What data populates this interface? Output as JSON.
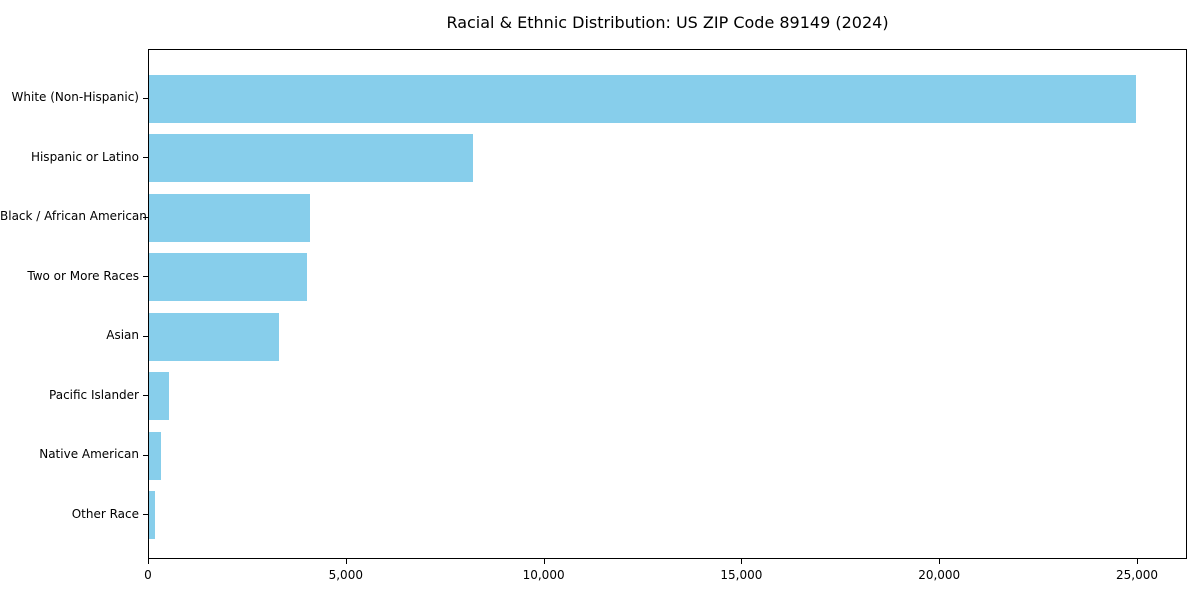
{
  "colors": {
    "bar": "#87CEEB",
    "axis": "#000000",
    "text": "#000000",
    "background": "#FFFFFF"
  },
  "chart_data": {
    "type": "bar",
    "orientation": "horizontal",
    "title": "Racial & Ethnic Distribution: US ZIP Code 89149 (2024)",
    "categories": [
      "White (Non-Hispanic)",
      "Hispanic or Latino",
      "Black / African American",
      "Two or More Races",
      "Asian",
      "Pacific Islander",
      "Native American",
      "Other Race"
    ],
    "values": [
      24950,
      8200,
      4070,
      4000,
      3290,
      500,
      300,
      150
    ],
    "xlabel": "",
    "ylabel": "",
    "xlim": [
      0,
      26264
    ],
    "x_ticks": [
      0,
      5000,
      10000,
      15000,
      20000,
      25000
    ],
    "x_tick_labels": [
      "0",
      "5,000",
      "10,000",
      "15,000",
      "20,000",
      "25,000"
    ],
    "grid": false,
    "legend": null
  }
}
